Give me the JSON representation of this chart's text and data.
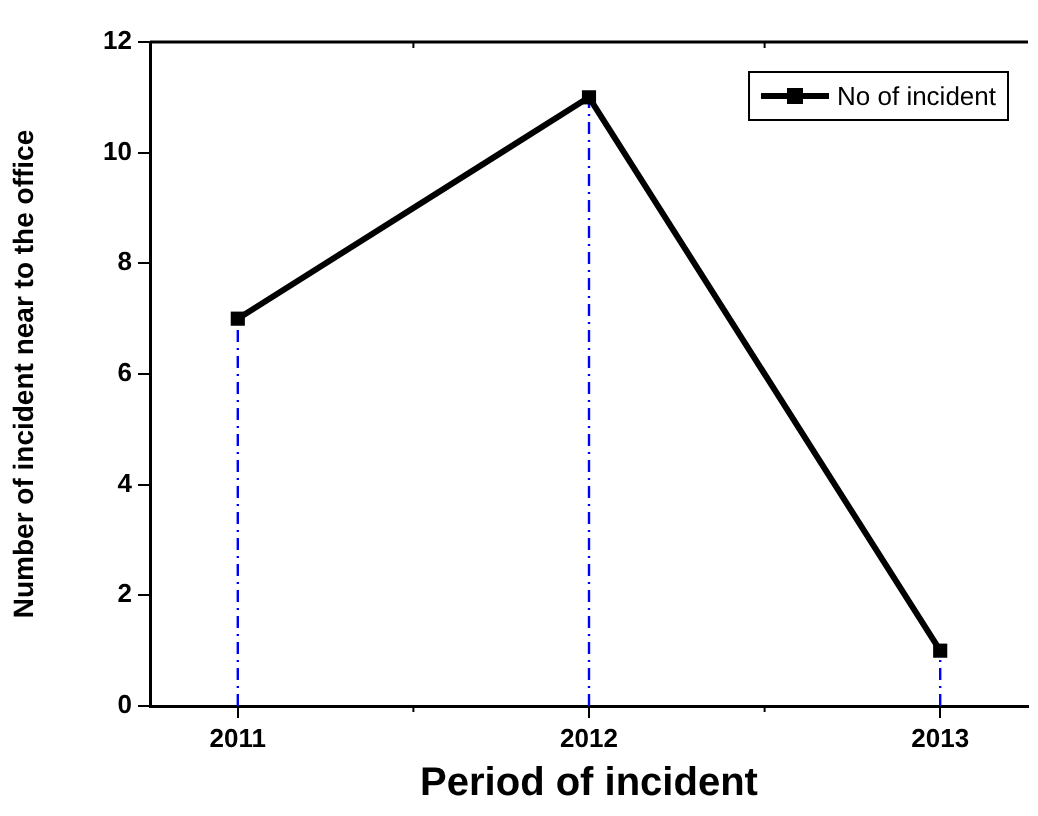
{
  "chart_data": {
    "type": "line",
    "xlabel": "Period of incident",
    "ylabel": "Number of incident near to the office",
    "x": [
      2011,
      2012,
      2013
    ],
    "series": [
      {
        "name": "No of incident",
        "color": "#000000",
        "values": [
          7,
          11,
          1
        ]
      }
    ],
    "xlim": [
      2010.75,
      2013.25
    ],
    "xticks": [
      2011,
      2012,
      2013
    ],
    "ylim": [
      0,
      12
    ],
    "yticks": [
      0,
      2,
      4,
      6,
      8,
      10,
      12
    ],
    "ref_lines": [
      {
        "axis": "x",
        "value": 2011,
        "color": "#0000ff",
        "line_style": "dashed"
      },
      {
        "axis": "x",
        "value": 2012,
        "color": "#0000ff",
        "line_style": "dashed"
      },
      {
        "axis": "x",
        "value": 2013,
        "color": "#0000ff",
        "line_style": "dashed"
      }
    ],
    "marker": "square",
    "line_style": "solid",
    "legend": "top right",
    "grid": false
  }
}
